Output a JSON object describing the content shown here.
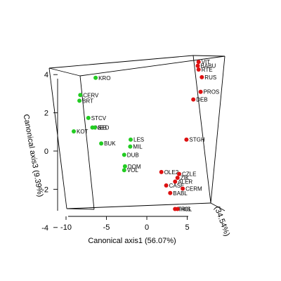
{
  "chart_data": {
    "type": "scatter3d",
    "xlabel": "Canonical axis1 (56.07%)",
    "ylabel": "(34.54%)",
    "zlabel": "Canonical axis3 (9.39%)",
    "xlim": [
      -10,
      7
    ],
    "ylim": [
      -8,
      8
    ],
    "zlim": [
      -4,
      4
    ],
    "x_ticks": [
      "-10",
      "-5",
      "0",
      "5"
    ],
    "z_ticks": [
      "-4",
      "-2",
      "0",
      "2",
      "4"
    ],
    "colors": {
      "green": "#22cc22",
      "red": "#dd1111"
    },
    "series": [
      {
        "color": "green",
        "points": [
          {
            "label": "KRO",
            "x": -6.6,
            "y": 5,
            "z": 3.5
          },
          {
            "label": "CERV",
            "x": -8.5,
            "y": 5,
            "z": 2.6
          },
          {
            "label": "BRT",
            "x": -8.6,
            "y": 5,
            "z": 2.3
          },
          {
            "label": "STCV",
            "x": -7.5,
            "y": 5,
            "z": 1.4
          },
          {
            "label": "KOT",
            "x": -9.3,
            "y": 5,
            "z": 0.7
          },
          {
            "label": "NEB",
            "x": -7.0,
            "y": 5,
            "z": 0.9
          },
          {
            "label": "SED",
            "x": -6.7,
            "y": 5,
            "z": 0.9
          },
          {
            "label": "BUK",
            "x": -5.8,
            "y": 3,
            "z": 0.2
          },
          {
            "label": "LES",
            "x": -2.0,
            "y": 0,
            "z": 0.6
          },
          {
            "label": "MIL",
            "x": -2.0,
            "y": -1,
            "z": 0.3
          },
          {
            "label": "DUB",
            "x": -2.8,
            "y": 0,
            "z": -0.2
          },
          {
            "label": "DOM",
            "x": -2.7,
            "y": 0,
            "z": -0.8
          },
          {
            "label": "VOL",
            "x": -2.8,
            "y": 0,
            "z": -1.0
          }
        ]
      },
      {
        "color": "red",
        "points": [
          {
            "label": "VIT",
            "x": 6.2,
            "y": 4,
            "z": 4.4
          },
          {
            "label": "BABU",
            "x": 6.1,
            "y": 4,
            "z": 4.2
          },
          {
            "label": "RTE",
            "x": 6.2,
            "y": 4,
            "z": 4.0
          },
          {
            "label": "RUS",
            "x": 6.6,
            "y": 4,
            "z": 3.6
          },
          {
            "label": "PROS",
            "x": 6.5,
            "y": 3,
            "z": 2.9
          },
          {
            "label": "DEB",
            "x": 5.6,
            "y": 3,
            "z": 2.5
          },
          {
            "label": "STGH",
            "x": 4.9,
            "y": 0,
            "z": 0.6
          },
          {
            "label": "OLE2",
            "x": 1.8,
            "y": 0,
            "z": -1.1
          },
          {
            "label": "CZLE",
            "x": 4.0,
            "y": 0,
            "z": -1.2
          },
          {
            "label": "ZIK",
            "x": 3.8,
            "y": 0,
            "z": -1.4
          },
          {
            "label": "ALER",
            "x": 3.5,
            "y": 0,
            "z": -1.6
          },
          {
            "label": "CASE",
            "x": 2.4,
            "y": 0,
            "z": -1.8
          },
          {
            "label": "CERM",
            "x": 4.5,
            "y": -1,
            "z": -1.9
          },
          {
            "label": "BABL",
            "x": 2.9,
            "y": 0,
            "z": -2.2
          },
          {
            "label": "TRIS",
            "x": 3.6,
            "y": -2,
            "z": -2.9
          },
          {
            "label": "HGL",
            "x": 3.9,
            "y": -2,
            "z": -2.9
          }
        ]
      }
    ]
  }
}
